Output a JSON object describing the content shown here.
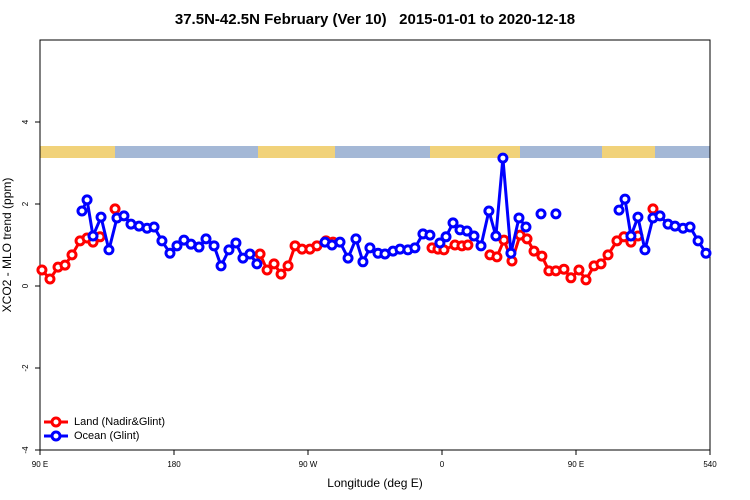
{
  "chart_data": {
    "type": "line",
    "title": "37.5N-42.5N February (Ver 10)   2015-01-01 to 2020-12-18",
    "x_label": "Longitude (deg E)",
    "y_label": "XCO2 - MLO trend (ppm)",
    "xlim": [
      90,
      540
    ],
    "xticks": [
      {
        "value": 90,
        "label": "90 E"
      },
      180,
      {
        "value": 270,
        "label": "90 W"
      },
      {
        "value": 360,
        "label": "0"
      },
      {
        "value": 450,
        "label": "90 E"
      },
      540
    ],
    "ylim": [
      -4,
      6
    ],
    "yticks": [
      -4,
      -2,
      0,
      2,
      4
    ],
    "legend": "bottom-left",
    "series": [
      {
        "name": "Land (Nadir&Glint)",
        "color": "#ff0000",
        "x": [
          91.3,
          96.7,
          102.1,
          106.8,
          111.5,
          116.9,
          121.6,
          125.6,
          130.3,
          null,
          140.4,
          null,
          237.8,
          242.5,
          247.2,
          251.9,
          256.6,
          261.3,
          266.0,
          271.3,
          276.0,
          282.1,
          286.8,
          null,
          353.3,
          357.3,
          361.3,
          368.7,
          373.4,
          377.4,
          null,
          392.2,
          396.9,
          401.6,
          407.0,
          412.4,
          417.1,
          421.8,
          427.1,
          431.8,
          436.5,
          441.9,
          446.6,
          452.0,
          456.7,
          462.1,
          466.8,
          471.5,
          477.5,
          482.2,
          486.9,
          491.6,
          null,
          501.7
        ],
        "values": [
          0.39,
          0.17,
          0.46,
          0.51,
          0.76,
          1.1,
          1.17,
          1.07,
          1.2,
          null,
          1.88,
          null,
          0.78,
          0.39,
          0.54,
          0.29,
          0.49,
          0.98,
          0.9,
          0.9,
          0.98,
          1.1,
          1.07,
          null,
          0.93,
          0.9,
          0.88,
          1.0,
          0.98,
          1.0,
          null,
          0.76,
          0.71,
          1.12,
          0.61,
          1.24,
          1.15,
          0.85,
          0.73,
          0.37,
          0.37,
          0.41,
          0.2,
          0.39,
          0.15,
          0.49,
          0.54,
          0.76,
          1.1,
          1.2,
          1.07,
          1.22,
          null,
          1.88
        ]
      },
      {
        "name": "Ocean (Glint)",
        "color": "#0000ff",
        "x": [
          118.2,
          121.6,
          125.6,
          131.0,
          136.3,
          141.7,
          146.4,
          151.1,
          156.5,
          161.9,
          166.6,
          171.9,
          177.3,
          182.0,
          186.7,
          191.4,
          196.8,
          201.5,
          206.9,
          211.6,
          216.9,
          221.6,
          226.3,
          231.0,
          235.7,
          null,
          281.4,
          286.1,
          291.5,
          296.9,
          302.2,
          306.9,
          311.6,
          317.0,
          321.7,
          327.1,
          331.8,
          337.1,
          341.8,
          347.2,
          351.9,
          null,
          358.6,
          362.7,
          367.4,
          372.1,
          376.8,
          381.5,
          386.2,
          391.5,
          396.2,
          400.9,
          406.3,
          411.7,
          416.4,
          null,
          426.5,
          null,
          436.5,
          null,
          478.9,
          482.9,
          486.9,
          491.6,
          496.3,
          501.7,
          506.4,
          511.8,
          516.5,
          521.9,
          526.6,
          532.0,
          537.3
        ],
        "values": [
          1.83,
          2.1,
          1.22,
          1.68,
          0.88,
          1.66,
          1.71,
          1.51,
          1.46,
          1.41,
          1.44,
          1.1,
          0.8,
          0.98,
          1.12,
          1.02,
          0.95,
          1.15,
          0.98,
          0.49,
          0.88,
          1.05,
          0.68,
          0.78,
          0.54,
          null,
          1.07,
          1.0,
          1.07,
          0.68,
          1.15,
          0.59,
          0.93,
          0.8,
          0.78,
          0.85,
          0.9,
          0.88,
          0.93,
          1.27,
          1.24,
          null,
          1.05,
          1.2,
          1.54,
          1.37,
          1.34,
          1.22,
          0.98,
          1.83,
          1.22,
          3.12,
          0.8,
          1.66,
          1.44,
          null,
          1.76,
          null,
          1.76,
          null,
          1.85,
          2.12,
          1.22,
          1.68,
          0.88,
          1.66,
          1.71,
          1.51,
          1.46,
          1.41,
          1.44,
          1.1,
          0.8
        ]
      }
    ]
  }
}
